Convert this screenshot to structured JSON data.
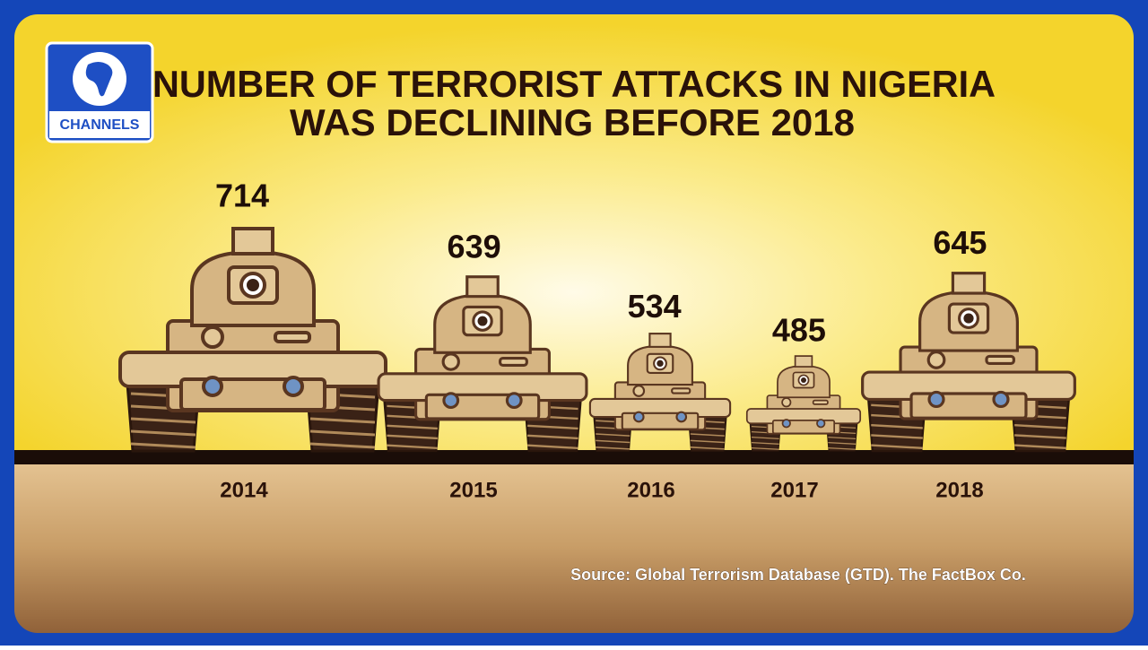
{
  "logo": "CHANNELS",
  "chart_data": {
    "type": "pictorial",
    "title": [
      "NUMBER OF TERRORIST ATTACKS IN NIGERIA",
      "WAS DECLINING BEFORE 2018"
    ],
    "categories": [
      "2014",
      "2015",
      "2016",
      "2017",
      "2018"
    ],
    "values": [
      714,
      639,
      534,
      485,
      645
    ],
    "color": "#d6b583",
    "source": "Source: Global Terrorism Database (GTD). The FactBox Co."
  }
}
